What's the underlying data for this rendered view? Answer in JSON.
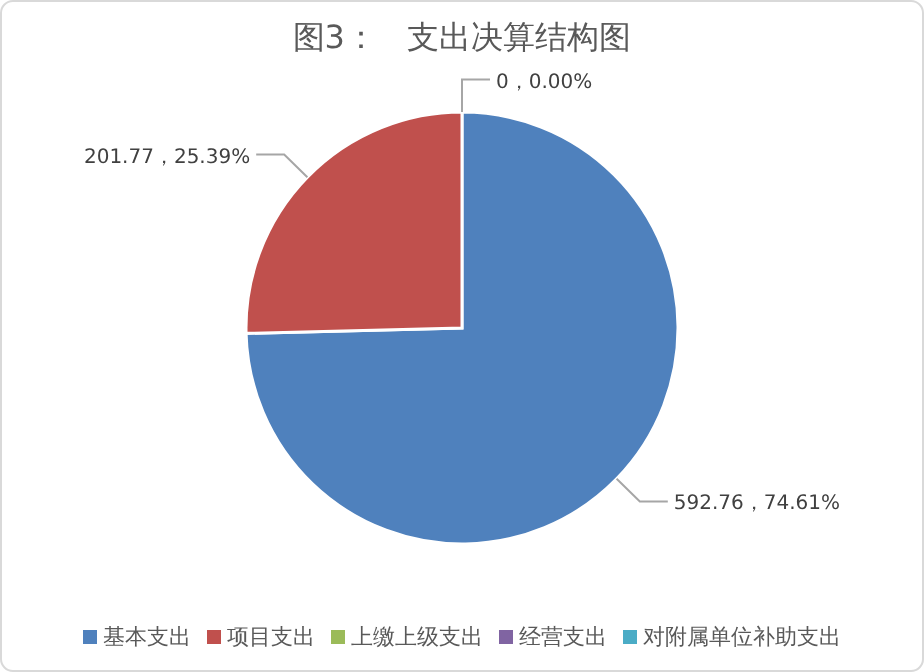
{
  "chart_data": {
    "type": "pie",
    "title": "图3：   支出决算结构图",
    "categories": [
      "基本支出",
      "项目支出",
      "上缴上级支出",
      "经营支出",
      "对附属单位补助支出"
    ],
    "values": [
      592.76,
      201.77,
      0,
      0,
      0
    ],
    "colors": [
      "#4f81bd",
      "#c0504d",
      "#9bbb59",
      "#8064a2",
      "#4bacc6"
    ],
    "value_labels": [
      "592.76，74.61%",
      "201.77，25.39%",
      "0，0.00%",
      null,
      null
    ],
    "legend": "bottom"
  }
}
